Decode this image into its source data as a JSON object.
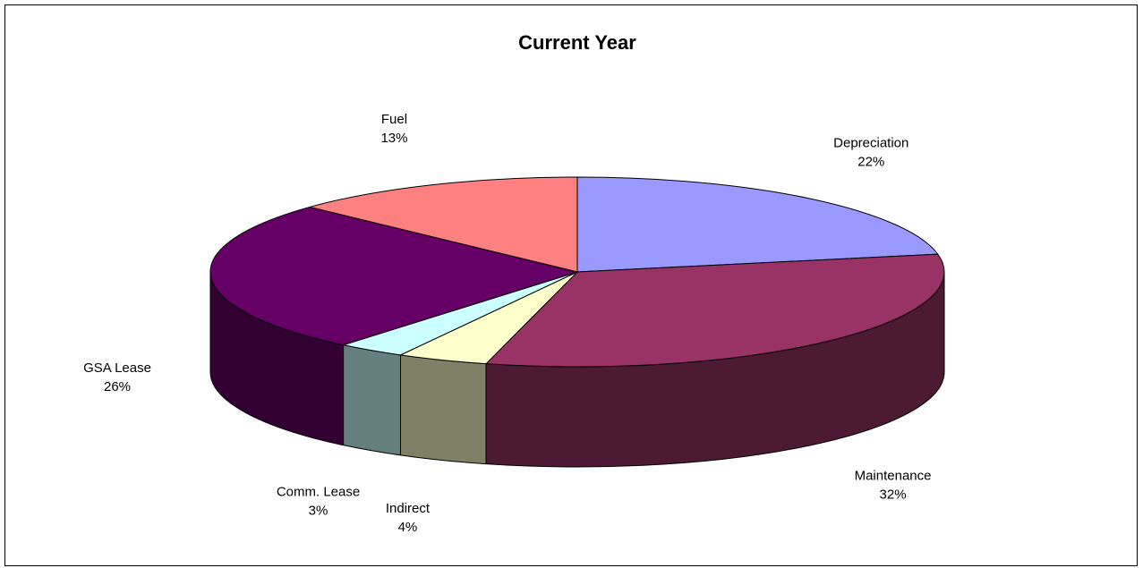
{
  "chart_data": {
    "type": "pie",
    "style": "3d",
    "title": "Current Year",
    "legend": "none",
    "slices": [
      {
        "label": "Depreciation",
        "pct_label": "22%",
        "value": 22,
        "color": "#9999ff"
      },
      {
        "label": "Maintenance",
        "pct_label": "32%",
        "value": 32,
        "color": "#993366"
      },
      {
        "label": "Indirect",
        "pct_label": "4%",
        "value": 4,
        "color": "#ffffcc"
      },
      {
        "label": "Comm. Lease",
        "pct_label": "3%",
        "value": 3,
        "color": "#ccffff"
      },
      {
        "label": "GSA Lease",
        "pct_label": "26%",
        "value": 26,
        "color": "#660066"
      },
      {
        "label": "Fuel",
        "pct_label": "13%",
        "value": 13,
        "color": "#ff8080"
      }
    ]
  }
}
